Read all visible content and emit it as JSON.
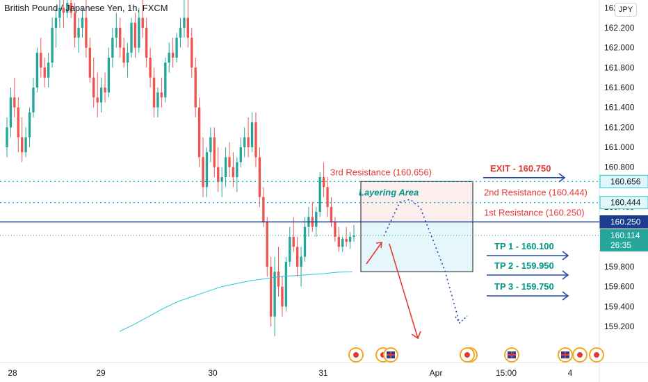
{
  "chart_data": {
    "type": "candlestick",
    "title": "British Pound / Japanese Yen, 1h, FXCM",
    "currency": "JPY",
    "y_ticks": [
      "162.400",
      "162.200",
      "162.000",
      "161.800",
      "161.600",
      "161.400",
      "161.200",
      "161.000",
      "160.800",
      "160.400",
      "159.800",
      "159.600",
      "159.400",
      "159.200"
    ],
    "ylim": [
      159.1,
      162.55
    ],
    "x_ticks": [
      "28",
      "29",
      "30",
      "31",
      "Apr",
      "15:00",
      "4"
    ],
    "price_labels": [
      {
        "text": "160.656",
        "value": 160.656,
        "bg": "#e0f7fa",
        "fg": "#131722",
        "border": "#26c6da"
      },
      {
        "text": "160.444",
        "value": 160.444,
        "bg": "#e0f7fa",
        "fg": "#131722",
        "border": "#26c6da"
      },
      {
        "text": "160.250",
        "value": 160.25,
        "bg": "#1a3d8f",
        "fg": "#ffffff",
        "border": "#1a3d8f"
      },
      {
        "text": "160.114",
        "value": 160.114,
        "bg": "#26a69a",
        "fg": "#ffffff",
        "border": "#26a69a"
      }
    ],
    "countdown": "26:35",
    "annotations": {
      "exit": {
        "label": "EXIT - 160.750",
        "value": 160.75
      },
      "resistances": [
        {
          "label": "3rd Resistance (160.656)",
          "value": 160.656
        },
        {
          "label": "2nd Resistance (160.444)",
          "value": 160.444
        },
        {
          "label": "1st Resistance (160.250)",
          "value": 160.25
        }
      ],
      "take_profits": [
        {
          "label": "TP 1 - 160.100",
          "value": 160.1
        },
        {
          "label": "TP 2 - 159.950",
          "value": 159.95
        },
        {
          "label": "TP 3 - 159.750",
          "value": 159.75
        }
      ],
      "layering_label": "Layering Area",
      "layering_zone": [
        159.75,
        160.656
      ]
    },
    "candles": [
      [
        161.0,
        161.3,
        160.9,
        161.2
      ],
      [
        161.2,
        161.6,
        161.1,
        161.5
      ],
      [
        161.5,
        161.7,
        161.3,
        161.4
      ],
      [
        161.4,
        161.5,
        160.95,
        161.1
      ],
      [
        161.1,
        161.3,
        160.85,
        160.95
      ],
      [
        160.95,
        161.2,
        160.9,
        161.1
      ],
      [
        161.1,
        161.4,
        161.0,
        161.35
      ],
      [
        161.35,
        161.7,
        161.3,
        161.6
      ],
      [
        161.6,
        162.0,
        161.55,
        161.95
      ],
      [
        161.95,
        162.1,
        161.7,
        161.8
      ],
      [
        161.8,
        161.9,
        161.6,
        161.7
      ],
      [
        161.7,
        161.95,
        161.6,
        161.85
      ],
      [
        161.85,
        162.3,
        161.8,
        162.2
      ],
      [
        162.2,
        162.4,
        162.0,
        162.3
      ],
      [
        162.3,
        162.5,
        162.2,
        162.4
      ],
      [
        162.4,
        162.5,
        162.2,
        162.35
      ],
      [
        162.35,
        162.5,
        162.3,
        162.45
      ],
      [
        162.45,
        162.5,
        162.3,
        162.35
      ],
      [
        162.35,
        162.45,
        162.0,
        162.1
      ],
      [
        162.1,
        162.3,
        161.95,
        162.2
      ],
      [
        162.2,
        162.4,
        162.1,
        162.3
      ],
      [
        162.3,
        162.5,
        161.9,
        162.0
      ],
      [
        162.0,
        162.1,
        161.65,
        161.7
      ],
      [
        161.7,
        161.9,
        161.4,
        161.5
      ],
      [
        161.5,
        161.75,
        161.3,
        161.45
      ],
      [
        161.45,
        161.7,
        161.35,
        161.6
      ],
      [
        161.6,
        161.75,
        161.45,
        161.55
      ],
      [
        161.55,
        162.0,
        161.5,
        161.9
      ],
      [
        161.9,
        162.2,
        161.8,
        162.1
      ],
      [
        162.1,
        162.35,
        162.0,
        162.2
      ],
      [
        162.2,
        162.3,
        161.9,
        162.0
      ],
      [
        162.0,
        162.1,
        161.8,
        161.85
      ],
      [
        161.85,
        162.05,
        161.7,
        161.95
      ],
      [
        161.95,
        162.3,
        161.9,
        162.25
      ],
      [
        162.25,
        162.35,
        161.9,
        162.0
      ],
      [
        162.0,
        162.4,
        161.95,
        162.3
      ],
      [
        162.3,
        162.5,
        162.1,
        162.2
      ],
      [
        162.2,
        162.3,
        161.8,
        161.9
      ],
      [
        161.9,
        162.0,
        161.6,
        161.7
      ],
      [
        161.7,
        161.8,
        161.3,
        161.4
      ],
      [
        161.4,
        161.6,
        161.3,
        161.55
      ],
      [
        161.55,
        161.7,
        161.4,
        161.5
      ],
      [
        161.5,
        161.9,
        161.45,
        161.85
      ],
      [
        161.85,
        162.05,
        161.75,
        161.95
      ],
      [
        161.95,
        162.1,
        161.8,
        161.9
      ],
      [
        161.9,
        162.15,
        161.85,
        162.1
      ],
      [
        162.1,
        162.3,
        162.0,
        162.2
      ],
      [
        162.2,
        162.5,
        162.1,
        162.3
      ],
      [
        162.3,
        162.5,
        162.0,
        162.1
      ],
      [
        162.1,
        162.2,
        161.7,
        161.8
      ],
      [
        161.8,
        161.9,
        161.3,
        161.4
      ],
      [
        161.4,
        161.5,
        160.8,
        160.9
      ],
      [
        160.9,
        161.1,
        160.5,
        160.6
      ],
      [
        160.6,
        161.0,
        160.5,
        160.95
      ],
      [
        160.95,
        161.2,
        160.85,
        161.1
      ],
      [
        161.1,
        161.2,
        160.7,
        160.8
      ],
      [
        160.8,
        161.0,
        160.55,
        160.65
      ],
      [
        160.65,
        160.8,
        160.5,
        160.7
      ],
      [
        160.7,
        161.0,
        160.6,
        160.9
      ],
      [
        160.9,
        161.05,
        160.7,
        160.8
      ],
      [
        160.8,
        160.95,
        160.6,
        160.7
      ],
      [
        160.7,
        160.9,
        160.55,
        160.85
      ],
      [
        160.85,
        161.1,
        160.8,
        161.0
      ],
      [
        161.0,
        161.2,
        160.9,
        161.1
      ],
      [
        161.1,
        161.3,
        160.9,
        161.0
      ],
      [
        161.0,
        161.35,
        160.95,
        161.25
      ],
      [
        161.25,
        161.35,
        160.8,
        160.9
      ],
      [
        160.9,
        161.0,
        160.4,
        160.5
      ],
      [
        160.5,
        160.6,
        160.2,
        160.25
      ],
      [
        160.25,
        160.3,
        159.7,
        159.8
      ],
      [
        159.8,
        159.9,
        159.2,
        159.3
      ],
      [
        159.3,
        159.9,
        159.1,
        159.75
      ],
      [
        159.75,
        160.0,
        159.5,
        159.6
      ],
      [
        159.6,
        159.7,
        159.3,
        159.4
      ],
      [
        159.4,
        159.9,
        159.35,
        159.85
      ],
      [
        159.85,
        160.2,
        159.8,
        160.1
      ],
      [
        160.1,
        160.3,
        159.95,
        160.0
      ],
      [
        160.0,
        160.1,
        159.7,
        159.8
      ],
      [
        159.8,
        160.0,
        159.6,
        159.9
      ],
      [
        159.9,
        160.3,
        159.85,
        160.2
      ],
      [
        160.2,
        160.4,
        160.1,
        160.3
      ],
      [
        160.3,
        160.45,
        160.15,
        160.2
      ],
      [
        160.2,
        160.4,
        160.1,
        160.35
      ],
      [
        160.35,
        160.75,
        160.3,
        160.7
      ],
      [
        160.7,
        160.85,
        160.5,
        160.6
      ],
      [
        160.6,
        160.7,
        160.3,
        160.4
      ],
      [
        160.4,
        160.5,
        160.2,
        160.25
      ],
      [
        160.25,
        160.3,
        160.05,
        160.1
      ],
      [
        160.1,
        160.2,
        159.95,
        160.0
      ],
      [
        160.0,
        160.1,
        159.95,
        160.08
      ],
      [
        160.08,
        160.2,
        160.0,
        160.05
      ],
      [
        160.05,
        160.15,
        159.98,
        160.1
      ],
      [
        160.1,
        160.22,
        160.05,
        160.114
      ]
    ],
    "sma": [
      159.15,
      159.22,
      159.3,
      159.38,
      159.45,
      159.5,
      159.55,
      159.6,
      159.63,
      159.66,
      159.68,
      159.7,
      159.71,
      159.72,
      159.73,
      159.745,
      159.75
    ]
  }
}
